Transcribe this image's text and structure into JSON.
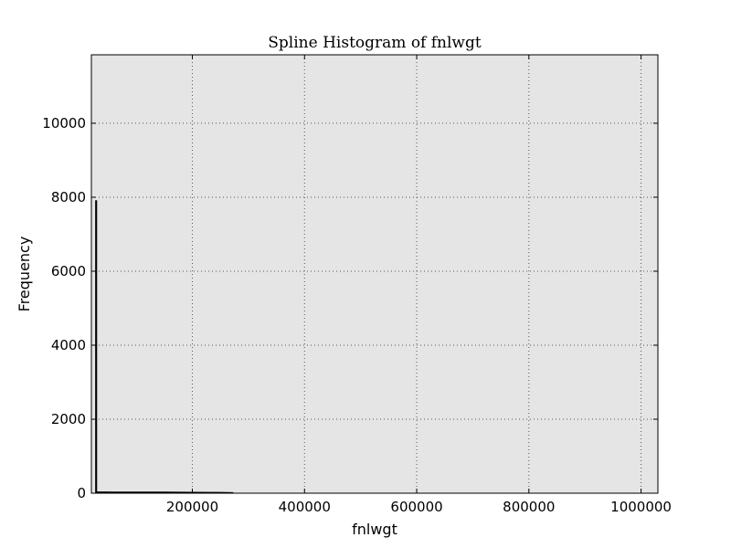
{
  "chart_data": {
    "type": "line",
    "title": "Spline Histogram of fnlwgt",
    "xlabel": "fnlwgt",
    "ylabel": "Frequency",
    "xlim": [
      20000,
      1030000
    ],
    "ylim": [
      0,
      11850
    ],
    "xticks": [
      200000,
      400000,
      600000,
      800000,
      1000000
    ],
    "yticks": [
      0,
      2000,
      4000,
      6000,
      8000,
      10000
    ],
    "grid": true,
    "background_color": "#e5e5e5",
    "line_color": "#000000",
    "series": [
      {
        "x": [
          28000,
          28000,
          29000,
          29000,
          60000,
          100000,
          150000,
          200000,
          250000,
          273000
        ],
        "y": [
          0,
          7900,
          7900,
          30,
          25,
          25,
          25,
          20,
          15,
          10
        ]
      }
    ]
  }
}
